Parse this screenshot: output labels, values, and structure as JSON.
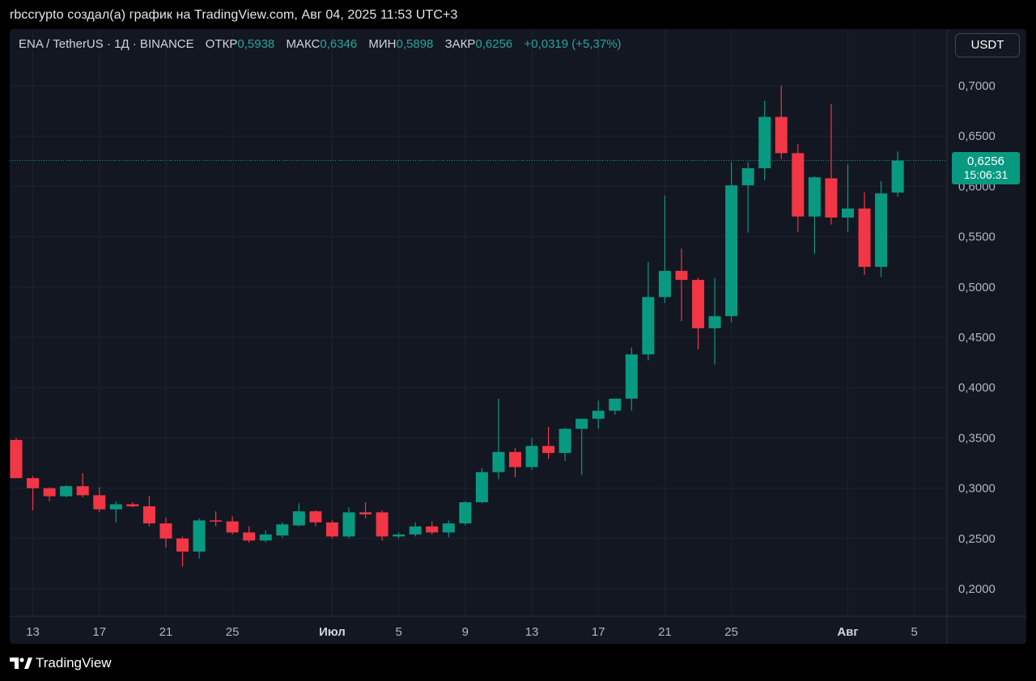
{
  "caption": "rbccrypto создал(а) график на TradingView.com, Авг 04, 2025 11:53 UTC+3",
  "legend": {
    "symbol": "ENA / TetherUS · 1Д · BINANCE",
    "open_label": "ОТКР",
    "open": "0,5938",
    "high_label": "МАКС",
    "high": "0,6346",
    "low_label": "МИН",
    "low": "0,5898",
    "close_label": "ЗАКР",
    "close": "0,6256",
    "change": "+0,0319 (+5,37%)"
  },
  "currency_button": "USDT",
  "price_tag": {
    "price": "0,6256",
    "countdown": "15:06:31"
  },
  "brand": "TradingView",
  "colors": {
    "up": "#089981",
    "down": "#f23645",
    "background": "#131722",
    "grid": "#1f2330",
    "axis_text": "#b2b5be"
  },
  "chart_data": {
    "type": "candlestick",
    "title": "ENA / TetherUS · 1Д · BINANCE",
    "y_ticks": [
      "0,2000",
      "0,2500",
      "0,3000",
      "0,3500",
      "0,4000",
      "0,4500",
      "0,5000",
      "0,5500",
      "0,6000",
      "0,6500",
      "0,7000"
    ],
    "y_range": [
      0.2,
      0.7
    ],
    "x_ticks": [
      {
        "label": "13",
        "index": 1
      },
      {
        "label": "17",
        "index": 5
      },
      {
        "label": "21",
        "index": 9
      },
      {
        "label": "25",
        "index": 13
      },
      {
        "label": "Июл",
        "index": 19
      },
      {
        "label": "5",
        "index": 23
      },
      {
        "label": "9",
        "index": 27
      },
      {
        "label": "13",
        "index": 31
      },
      {
        "label": "17",
        "index": 35
      },
      {
        "label": "21",
        "index": 39
      },
      {
        "label": "25",
        "index": 43
      },
      {
        "label": "Авг",
        "index": 50
      },
      {
        "label": "5",
        "index": 54
      }
    ],
    "last_price": 0.6256,
    "candles": [
      {
        "date": "2025-06-12",
        "o": 0.348,
        "h": 0.35,
        "l": 0.31,
        "c": 0.31
      },
      {
        "date": "2025-06-13",
        "o": 0.31,
        "h": 0.312,
        "l": 0.278,
        "c": 0.3
      },
      {
        "date": "2025-06-14",
        "o": 0.3,
        "h": 0.301,
        "l": 0.287,
        "c": 0.292
      },
      {
        "date": "2025-06-15",
        "o": 0.292,
        "h": 0.303,
        "l": 0.291,
        "c": 0.302
      },
      {
        "date": "2025-06-16",
        "o": 0.302,
        "h": 0.315,
        "l": 0.291,
        "c": 0.293
      },
      {
        "date": "2025-06-17",
        "o": 0.293,
        "h": 0.301,
        "l": 0.276,
        "c": 0.279
      },
      {
        "date": "2025-06-18",
        "o": 0.279,
        "h": 0.287,
        "l": 0.266,
        "c": 0.284
      },
      {
        "date": "2025-06-19",
        "o": 0.284,
        "h": 0.286,
        "l": 0.281,
        "c": 0.282
      },
      {
        "date": "2025-06-20",
        "o": 0.282,
        "h": 0.292,
        "l": 0.262,
        "c": 0.265
      },
      {
        "date": "2025-06-21",
        "o": 0.265,
        "h": 0.271,
        "l": 0.241,
        "c": 0.25
      },
      {
        "date": "2025-06-22",
        "o": 0.25,
        "h": 0.252,
        "l": 0.222,
        "c": 0.237
      },
      {
        "date": "2025-06-23",
        "o": 0.237,
        "h": 0.27,
        "l": 0.23,
        "c": 0.268
      },
      {
        "date": "2025-06-24",
        "o": 0.268,
        "h": 0.277,
        "l": 0.262,
        "c": 0.267
      },
      {
        "date": "2025-06-25",
        "o": 0.267,
        "h": 0.272,
        "l": 0.254,
        "c": 0.256
      },
      {
        "date": "2025-06-26",
        "o": 0.256,
        "h": 0.262,
        "l": 0.246,
        "c": 0.248
      },
      {
        "date": "2025-06-27",
        "o": 0.248,
        "h": 0.258,
        "l": 0.246,
        "c": 0.254
      },
      {
        "date": "2025-06-28",
        "o": 0.253,
        "h": 0.266,
        "l": 0.251,
        "c": 0.264
      },
      {
        "date": "2025-06-29",
        "o": 0.263,
        "h": 0.285,
        "l": 0.262,
        "c": 0.277
      },
      {
        "date": "2025-06-30",
        "o": 0.277,
        "h": 0.278,
        "l": 0.262,
        "c": 0.266
      },
      {
        "date": "2025-07-01",
        "o": 0.266,
        "h": 0.268,
        "l": 0.25,
        "c": 0.252
      },
      {
        "date": "2025-07-02",
        "o": 0.252,
        "h": 0.281,
        "l": 0.25,
        "c": 0.276
      },
      {
        "date": "2025-07-03",
        "o": 0.276,
        "h": 0.286,
        "l": 0.27,
        "c": 0.274
      },
      {
        "date": "2025-07-04",
        "o": 0.276,
        "h": 0.278,
        "l": 0.248,
        "c": 0.252
      },
      {
        "date": "2025-07-05",
        "o": 0.252,
        "h": 0.256,
        "l": 0.25,
        "c": 0.254
      },
      {
        "date": "2025-07-06",
        "o": 0.254,
        "h": 0.266,
        "l": 0.252,
        "c": 0.262
      },
      {
        "date": "2025-07-07",
        "o": 0.262,
        "h": 0.267,
        "l": 0.254,
        "c": 0.256
      },
      {
        "date": "2025-07-08",
        "o": 0.256,
        "h": 0.268,
        "l": 0.251,
        "c": 0.265
      },
      {
        "date": "2025-07-09",
        "o": 0.265,
        "h": 0.287,
        "l": 0.263,
        "c": 0.286
      },
      {
        "date": "2025-07-10",
        "o": 0.286,
        "h": 0.32,
        "l": 0.285,
        "c": 0.316
      },
      {
        "date": "2025-07-11",
        "o": 0.316,
        "h": 0.389,
        "l": 0.309,
        "c": 0.336
      },
      {
        "date": "2025-07-12",
        "o": 0.336,
        "h": 0.34,
        "l": 0.311,
        "c": 0.321
      },
      {
        "date": "2025-07-13",
        "o": 0.321,
        "h": 0.35,
        "l": 0.318,
        "c": 0.342
      },
      {
        "date": "2025-07-14",
        "o": 0.342,
        "h": 0.361,
        "l": 0.329,
        "c": 0.335
      },
      {
        "date": "2025-07-15",
        "o": 0.335,
        "h": 0.36,
        "l": 0.327,
        "c": 0.359
      },
      {
        "date": "2025-07-16",
        "o": 0.359,
        "h": 0.369,
        "l": 0.313,
        "c": 0.369
      },
      {
        "date": "2025-07-17",
        "o": 0.369,
        "h": 0.387,
        "l": 0.359,
        "c": 0.377
      },
      {
        "date": "2025-07-18",
        "o": 0.377,
        "h": 0.387,
        "l": 0.373,
        "c": 0.389
      },
      {
        "date": "2025-07-19",
        "o": 0.389,
        "h": 0.44,
        "l": 0.377,
        "c": 0.433
      },
      {
        "date": "2025-07-20",
        "o": 0.433,
        "h": 0.525,
        "l": 0.427,
        "c": 0.49
      },
      {
        "date": "2025-07-21",
        "o": 0.49,
        "h": 0.591,
        "l": 0.484,
        "c": 0.516
      },
      {
        "date": "2025-07-22",
        "o": 0.516,
        "h": 0.538,
        "l": 0.466,
        "c": 0.507
      },
      {
        "date": "2025-07-23",
        "o": 0.507,
        "h": 0.509,
        "l": 0.438,
        "c": 0.459
      },
      {
        "date": "2025-07-24",
        "o": 0.459,
        "h": 0.509,
        "l": 0.423,
        "c": 0.471
      },
      {
        "date": "2025-07-25",
        "o": 0.471,
        "h": 0.624,
        "l": 0.465,
        "c": 0.601
      },
      {
        "date": "2025-07-26",
        "o": 0.601,
        "h": 0.624,
        "l": 0.554,
        "c": 0.618
      },
      {
        "date": "2025-07-27",
        "o": 0.618,
        "h": 0.685,
        "l": 0.606,
        "c": 0.669
      },
      {
        "date": "2025-07-28",
        "o": 0.669,
        "h": 0.7,
        "l": 0.627,
        "c": 0.633
      },
      {
        "date": "2025-07-29",
        "o": 0.633,
        "h": 0.642,
        "l": 0.555,
        "c": 0.57
      },
      {
        "date": "2025-07-30",
        "o": 0.57,
        "h": 0.61,
        "l": 0.533,
        "c": 0.609
      },
      {
        "date": "2025-07-31",
        "o": 0.608,
        "h": 0.682,
        "l": 0.562,
        "c": 0.569
      },
      {
        "date": "2025-08-01",
        "o": 0.569,
        "h": 0.622,
        "l": 0.555,
        "c": 0.578
      },
      {
        "date": "2025-08-02",
        "o": 0.578,
        "h": 0.594,
        "l": 0.512,
        "c": 0.52
      },
      {
        "date": "2025-08-03",
        "o": 0.52,
        "h": 0.605,
        "l": 0.51,
        "c": 0.593
      },
      {
        "date": "2025-08-04",
        "o": 0.5938,
        "h": 0.6346,
        "l": 0.5898,
        "c": 0.6256
      }
    ]
  }
}
